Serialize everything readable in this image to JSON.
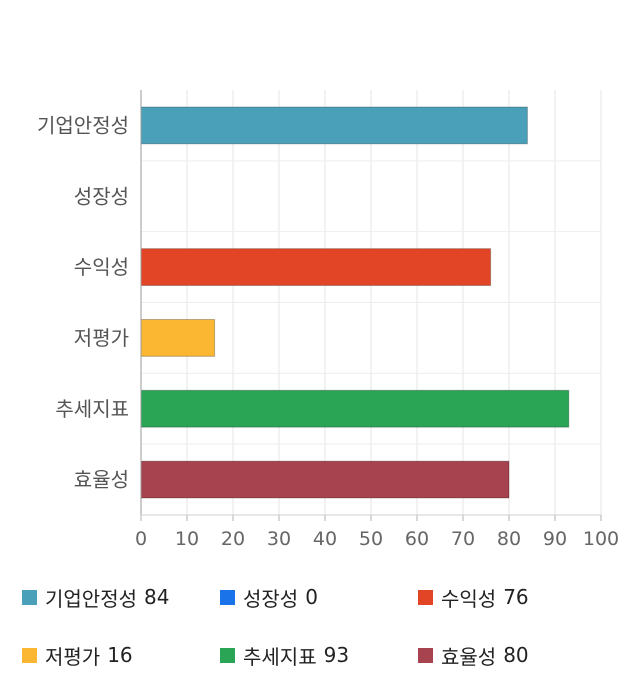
{
  "chart_data": {
    "type": "bar",
    "orientation": "horizontal",
    "categories": [
      "기업안정성",
      "성장성",
      "수익성",
      "저평가",
      "추세지표",
      "효율성"
    ],
    "values": [
      84,
      0,
      76,
      16,
      93,
      80
    ],
    "colors": [
      "#4aa0b8",
      "#1a73e8",
      "#e24426",
      "#fbb732",
      "#2aa555",
      "#a7434e"
    ],
    "xlim": [
      0,
      100
    ],
    "xticks": [
      0,
      10,
      20,
      30,
      40,
      50,
      60,
      70,
      80,
      90,
      100
    ],
    "grid": true,
    "legend_position": "bottom"
  },
  "legend": [
    {
      "label": "기업안정성",
      "value": "84",
      "color": "#4aa0b8"
    },
    {
      "label": "성장성",
      "value": "0",
      "color": "#1a73e8"
    },
    {
      "label": "수익성",
      "value": "76",
      "color": "#e24426"
    },
    {
      "label": "저평가",
      "value": "16",
      "color": "#fbb732"
    },
    {
      "label": "추세지표",
      "value": "93",
      "color": "#2aa555"
    },
    {
      "label": "효율성",
      "value": "80",
      "color": "#a7434e"
    }
  ]
}
